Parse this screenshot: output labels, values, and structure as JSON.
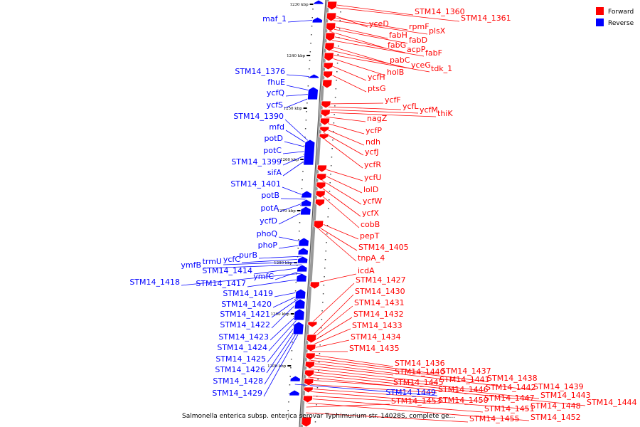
{
  "legend": {
    "forward_label": "Forward",
    "reverse_label": "Reverse",
    "forward_color": "#ff0000",
    "reverse_color": "#0000ff"
  },
  "caption": "Salmonella enterica subsp. enterica serovar Typhimurium str. 14028S, complete ge...",
  "ticks": [
    {
      "label": "1230 kbp"
    },
    {
      "label": "1240 kbp"
    },
    {
      "label": "1250 kbp"
    },
    {
      "label": "1260 kbp"
    },
    {
      "label": "1270 kbp"
    },
    {
      "label": "1280 kbp"
    },
    {
      "label": "1290 kbp"
    },
    {
      "label": "1300 kbp"
    }
  ],
  "forward_genes": [
    "STM14_1360",
    "STM14_1361",
    "yceD",
    "rpmF",
    "plsX",
    "fabH",
    "fabD",
    "fabG",
    "acpP",
    "fabF",
    "pabC",
    "yceG",
    "tdk_1",
    "holB",
    "ycfH",
    "ptsG",
    "ycfF",
    "ycfL",
    "ycfM",
    "thiK",
    "nagZ",
    "ycfP",
    "ndh",
    "ycfJ",
    "ycfR",
    "ycfU",
    "lolD",
    "ycfW",
    "ycfX",
    "cobB",
    "pepT",
    "STM14_1405",
    "tnpA_4",
    "icdA",
    "STM14_1427",
    "STM14_1430",
    "STM14_1431",
    "STM14_1432",
    "STM14_1433",
    "STM14_1434",
    "STM14_1435",
    "STM14_1436",
    "STM14_1437",
    "STM14_1438",
    "STM14_1439",
    "STM14_1440",
    "STM14_1441",
    "STM14_1442",
    "STM14_1443",
    "STM14_1444",
    "STM14_1445",
    "STM14_1446",
    "STM14_1447",
    "STM14_1448",
    "STM14_1450",
    "STM14_1451",
    "STM14_1452",
    "STM14_1453",
    "STM14_1455"
  ],
  "reverse_genes": [
    "maf_1",
    "STM14_1376",
    "fhuE",
    "ycfQ",
    "ycfS",
    "STM14_1390",
    "mfd",
    "potD",
    "potC",
    "STM14_1399",
    "sifA",
    "STM14_1401",
    "potB",
    "potA",
    "ycfD",
    "phoQ",
    "phoP",
    "purB",
    "ycfC",
    "trmU",
    "ymfB",
    "STM14_1414",
    "ymfC",
    "STM14_1418",
    "STM14_1417",
    "STM14_1419",
    "STM14_1420",
    "STM14_1421",
    "STM14_1422",
    "STM14_1423",
    "STM14_1424",
    "STM14_1425",
    "STM14_1426",
    "STM14_1428",
    "STM14_1429",
    "STM14_1449"
  ]
}
